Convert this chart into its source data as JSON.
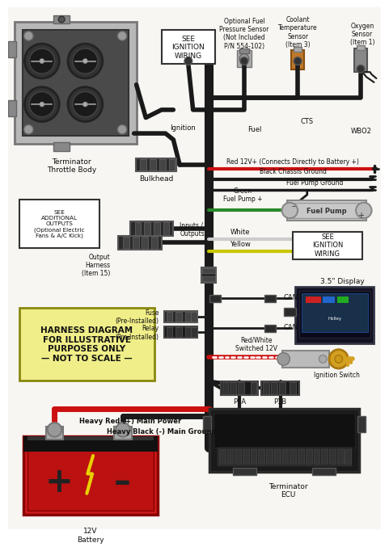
{
  "bg_color": "#ffffff",
  "paper_color": "#f8f6f2",
  "wire_colors": {
    "red": "#cc1111",
    "black": "#1a1a1a",
    "green": "#2a7a2a",
    "white_wire": "#cccccc",
    "yellow": "#cccc00",
    "dark": "#2a2a2a"
  },
  "labels": {
    "throttle_body": "Terminator\nThrottle Body",
    "see_ignition": "SEE\nIGNITION\nWIRING",
    "see_additional": "SEE\nADDITIONAL\nOUTPUTS\n(Optional Electric\nFans & A/C Kick)",
    "bulkhead": "Bulkhead",
    "output_harness": "Output\nHarness\n(Item 15)",
    "inputs_outputs": "Inputs /\nOutputs",
    "harness_note": "HARNESS DIAGRAM\nFOR ILLUSTRATIVE\nPURPOSES ONLY\n— NOT TO SCALE —",
    "red_wire": "Red 12V+ (Connects Directly to Battery +)",
    "black_chassis": "Black Chassis Ground",
    "fuel_pump_ground": "Fuel Pump Ground",
    "green_fuel": "Green\nFuel Pump +",
    "fuel_pump": "Fuel Pump",
    "white": "White",
    "yellow": "Yellow",
    "see_ign2": "SEE\nIGNITION\nWIRING",
    "can2": "CAN2",
    "can": "CAN",
    "display": "3.5\" Display",
    "fuse": "Fuse\n(Pre-Installed)",
    "relay": "Relay\n(Pre-Installed)",
    "heavy_red": "Heavy Red (+) Main Power",
    "heavy_black": "Heavy Black (-) Main Ground",
    "battery": "12V\nBattery",
    "red_white_12v": "Red/White\nSwitched 12V",
    "ignition_switch": "Ignition Switch",
    "p1a": "P1A",
    "p1b": "P1B",
    "ecu": "Terminator\nECU",
    "opt_fuel": "Optional Fuel\nPressure Sensor\n(Not Included\nP/N 554-102)",
    "coolant": "Coolant\nTemperature\nSensor\n(Item 3)",
    "oxygen": "Oxygen\nSensor\n(Item 1)",
    "ignition_lbl": "Ignition",
    "fuel_lbl": "Fuel",
    "cts_lbl": "CTS",
    "wbo2_lbl": "WBO2"
  }
}
